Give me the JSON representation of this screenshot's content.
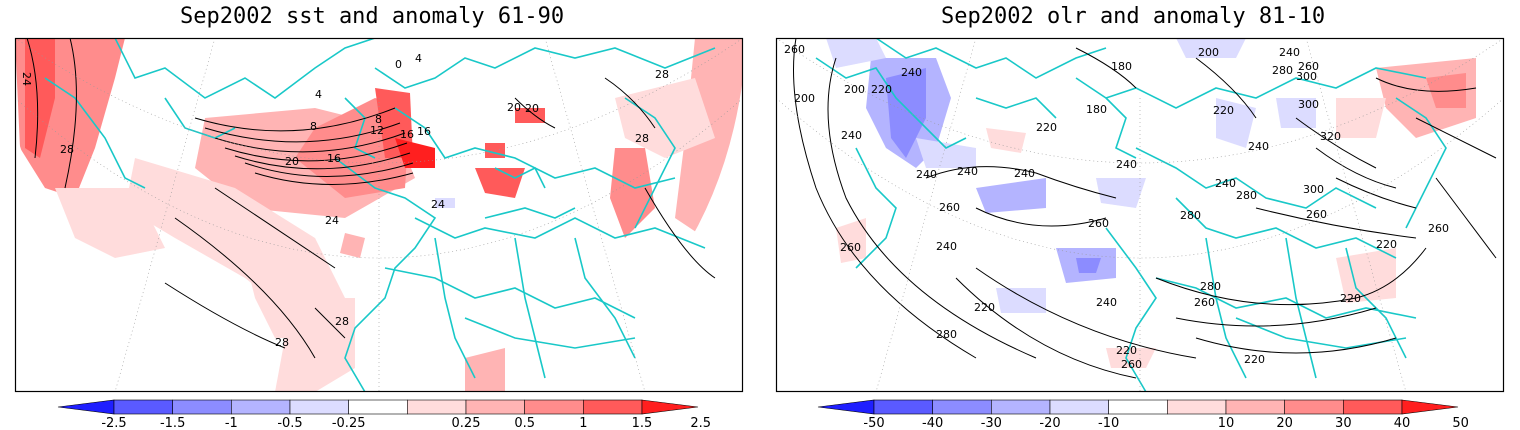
{
  "panels": [
    {
      "title": "Sep2002 sst and anomaly 61-90",
      "variable": "sst",
      "contour_labels": [
        "24",
        "28",
        "28",
        "28",
        "0",
        "4",
        "4",
        "8",
        "8",
        "12",
        "16",
        "16",
        "20",
        "20",
        "24",
        "24",
        "28",
        "28",
        "16",
        "20"
      ],
      "colorbar": {
        "ticks": [
          "-2.5",
          "-1.5",
          "-1",
          "-0.5",
          "-0.25",
          "0.25",
          "0.5",
          "1",
          "1.5",
          "2.5"
        ],
        "colors": [
          "#1f1fff",
          "#5a5aff",
          "#8c8cff",
          "#b4b4ff",
          "#dcdcff",
          "#ffffff",
          "#ffdcdc",
          "#ffb4b4",
          "#ff8c8c",
          "#ff5a5a",
          "#ff1f1f"
        ]
      }
    },
    {
      "title": "Sep2002 olr and anomaly 81-10",
      "variable": "olr",
      "contour_labels": [
        "260",
        "200",
        "200",
        "200",
        "220",
        "240",
        "180",
        "180",
        "220",
        "240",
        "240",
        "240",
        "260",
        "260",
        "220",
        "240",
        "240",
        "240",
        "240",
        "280",
        "280",
        "300",
        "320",
        "260",
        "300",
        "280",
        "260",
        "280",
        "300",
        "240",
        "260",
        "220",
        "220",
        "220",
        "240",
        "260",
        "260",
        "220",
        "220",
        "280",
        "240",
        "260"
      ],
      "colorbar": {
        "ticks": [
          "-50",
          "-40",
          "-30",
          "-20",
          "-10",
          "10",
          "20",
          "30",
          "40",
          "50"
        ],
        "colors": [
          "#1f1fff",
          "#5a5aff",
          "#8c8cff",
          "#b4b4ff",
          "#dcdcff",
          "#ffffff",
          "#ffdcdc",
          "#ffb4b4",
          "#ff8c8c",
          "#ff5a5a",
          "#ff1f1f"
        ]
      }
    }
  ],
  "colors": {
    "coastline": "#19c8c8",
    "contour": "#000000",
    "frame": "#000000"
  }
}
